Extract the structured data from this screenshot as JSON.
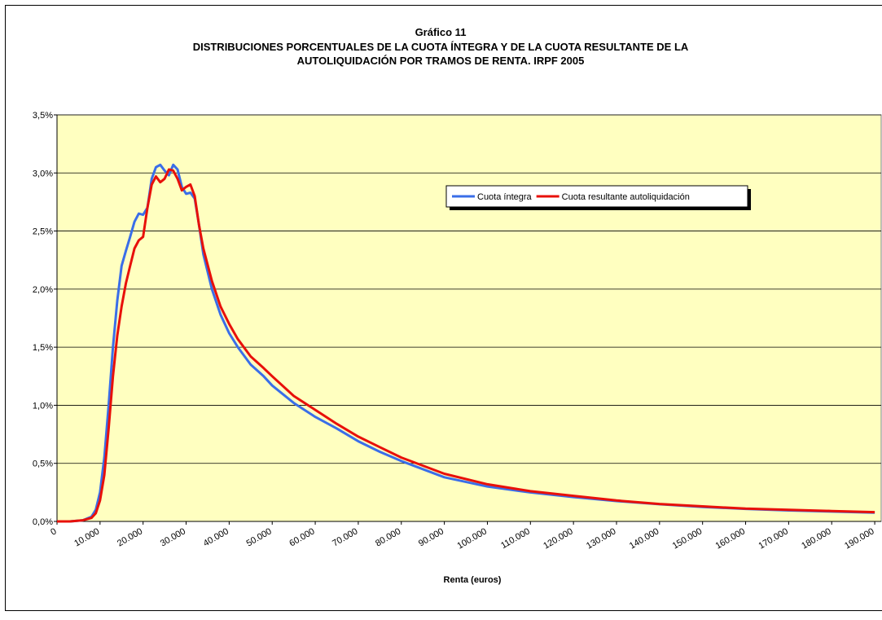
{
  "chart_data": {
    "type": "line",
    "title": "Gráfico 11",
    "subtitle": [
      "DISTRIBUCIONES PORCENTUALES DE LA CUOTA ÍNTEGRA Y DE LA CUOTA RESULTANTE DE LA",
      "AUTOLIQUIDACIÓN POR TRAMOS DE RENTA. IRPF 2005"
    ],
    "x_label": "Renta (euros)",
    "x": [
      0,
      3000,
      6000,
      8000,
      9000,
      10000,
      11000,
      12000,
      13000,
      14000,
      15000,
      16000,
      17000,
      18000,
      19000,
      20000,
      21000,
      22000,
      23000,
      24000,
      25000,
      26000,
      27000,
      28000,
      29000,
      30000,
      31000,
      32000,
      33000,
      34000,
      36000,
      38000,
      40000,
      42000,
      45000,
      48000,
      50000,
      55000,
      60000,
      65000,
      70000,
      75000,
      80000,
      90000,
      100000,
      110000,
      120000,
      130000,
      140000,
      150000,
      160000,
      170000,
      180000,
      190000
    ],
    "series": [
      {
        "name": "Cuota íntegra",
        "color": "#3a6ee8",
        "values": [
          0,
          0,
          0.01,
          0.04,
          0.1,
          0.25,
          0.55,
          1.0,
          1.5,
          1.9,
          2.2,
          2.33,
          2.45,
          2.58,
          2.65,
          2.64,
          2.7,
          2.95,
          3.05,
          3.07,
          3.02,
          2.98,
          3.07,
          3.03,
          2.88,
          2.82,
          2.83,
          2.78,
          2.55,
          2.3,
          2.0,
          1.78,
          1.62,
          1.5,
          1.35,
          1.25,
          1.17,
          1.02,
          0.9,
          0.8,
          0.69,
          0.6,
          0.52,
          0.38,
          0.3,
          0.25,
          0.21,
          0.175,
          0.148,
          0.125,
          0.108,
          0.095,
          0.085,
          0.075
        ]
      },
      {
        "name": "Cuota resultante autoliquidación",
        "color": "#e8100a",
        "values": [
          0,
          0,
          0.01,
          0.03,
          0.07,
          0.18,
          0.4,
          0.8,
          1.25,
          1.6,
          1.85,
          2.05,
          2.2,
          2.35,
          2.42,
          2.45,
          2.7,
          2.9,
          2.97,
          2.92,
          2.95,
          3.03,
          3.02,
          2.95,
          2.85,
          2.88,
          2.9,
          2.8,
          2.55,
          2.35,
          2.07,
          1.85,
          1.7,
          1.57,
          1.42,
          1.32,
          1.25,
          1.08,
          0.96,
          0.84,
          0.73,
          0.64,
          0.55,
          0.41,
          0.32,
          0.26,
          0.22,
          0.18,
          0.15,
          0.13,
          0.11,
          0.1,
          0.09,
          0.08
        ]
      }
    ],
    "xlim": [
      0,
      191500
    ],
    "xticks": [
      0,
      {
        "value": 10000,
        "label": "10.000"
      },
      {
        "value": 20000,
        "label": "20.000"
      },
      {
        "value": 30000,
        "label": "30.000"
      },
      {
        "value": 40000,
        "label": "40.000"
      },
      {
        "value": 50000,
        "label": "50.000"
      },
      {
        "value": 60000,
        "label": "60.000"
      },
      {
        "value": 70000,
        "label": "70.000"
      },
      {
        "value": 80000,
        "label": "80.000"
      },
      {
        "value": 90000,
        "label": "90.000"
      },
      {
        "value": 100000,
        "label": "100.000"
      },
      {
        "value": 110000,
        "label": "110.000"
      },
      {
        "value": 120000,
        "label": "120.000"
      },
      {
        "value": 130000,
        "label": "130.000"
      },
      {
        "value": 140000,
        "label": "140.000"
      },
      {
        "value": 150000,
        "label": "150.000"
      },
      {
        "value": 160000,
        "label": "160.000"
      },
      {
        "value": 170000,
        "label": "170.000"
      },
      {
        "value": 180000,
        "label": "180.000"
      },
      {
        "value": 190000,
        "label": "190.000"
      }
    ],
    "ylim": [
      0,
      3.5
    ],
    "yticks": [
      {
        "value": 0,
        "label": "0,0%"
      },
      {
        "value": 0.5,
        "label": "0,5%"
      },
      {
        "value": 1,
        "label": "1,0%"
      },
      {
        "value": 1.5,
        "label": "1,5%"
      },
      {
        "value": 2,
        "label": "2,0%"
      },
      {
        "value": 2.5,
        "label": "2,5%"
      },
      {
        "value": 3,
        "label": "3,0%"
      },
      {
        "value": 3.5,
        "label": "3,5%"
      }
    ],
    "grid": true,
    "plot_background": "#ffffc0"
  }
}
